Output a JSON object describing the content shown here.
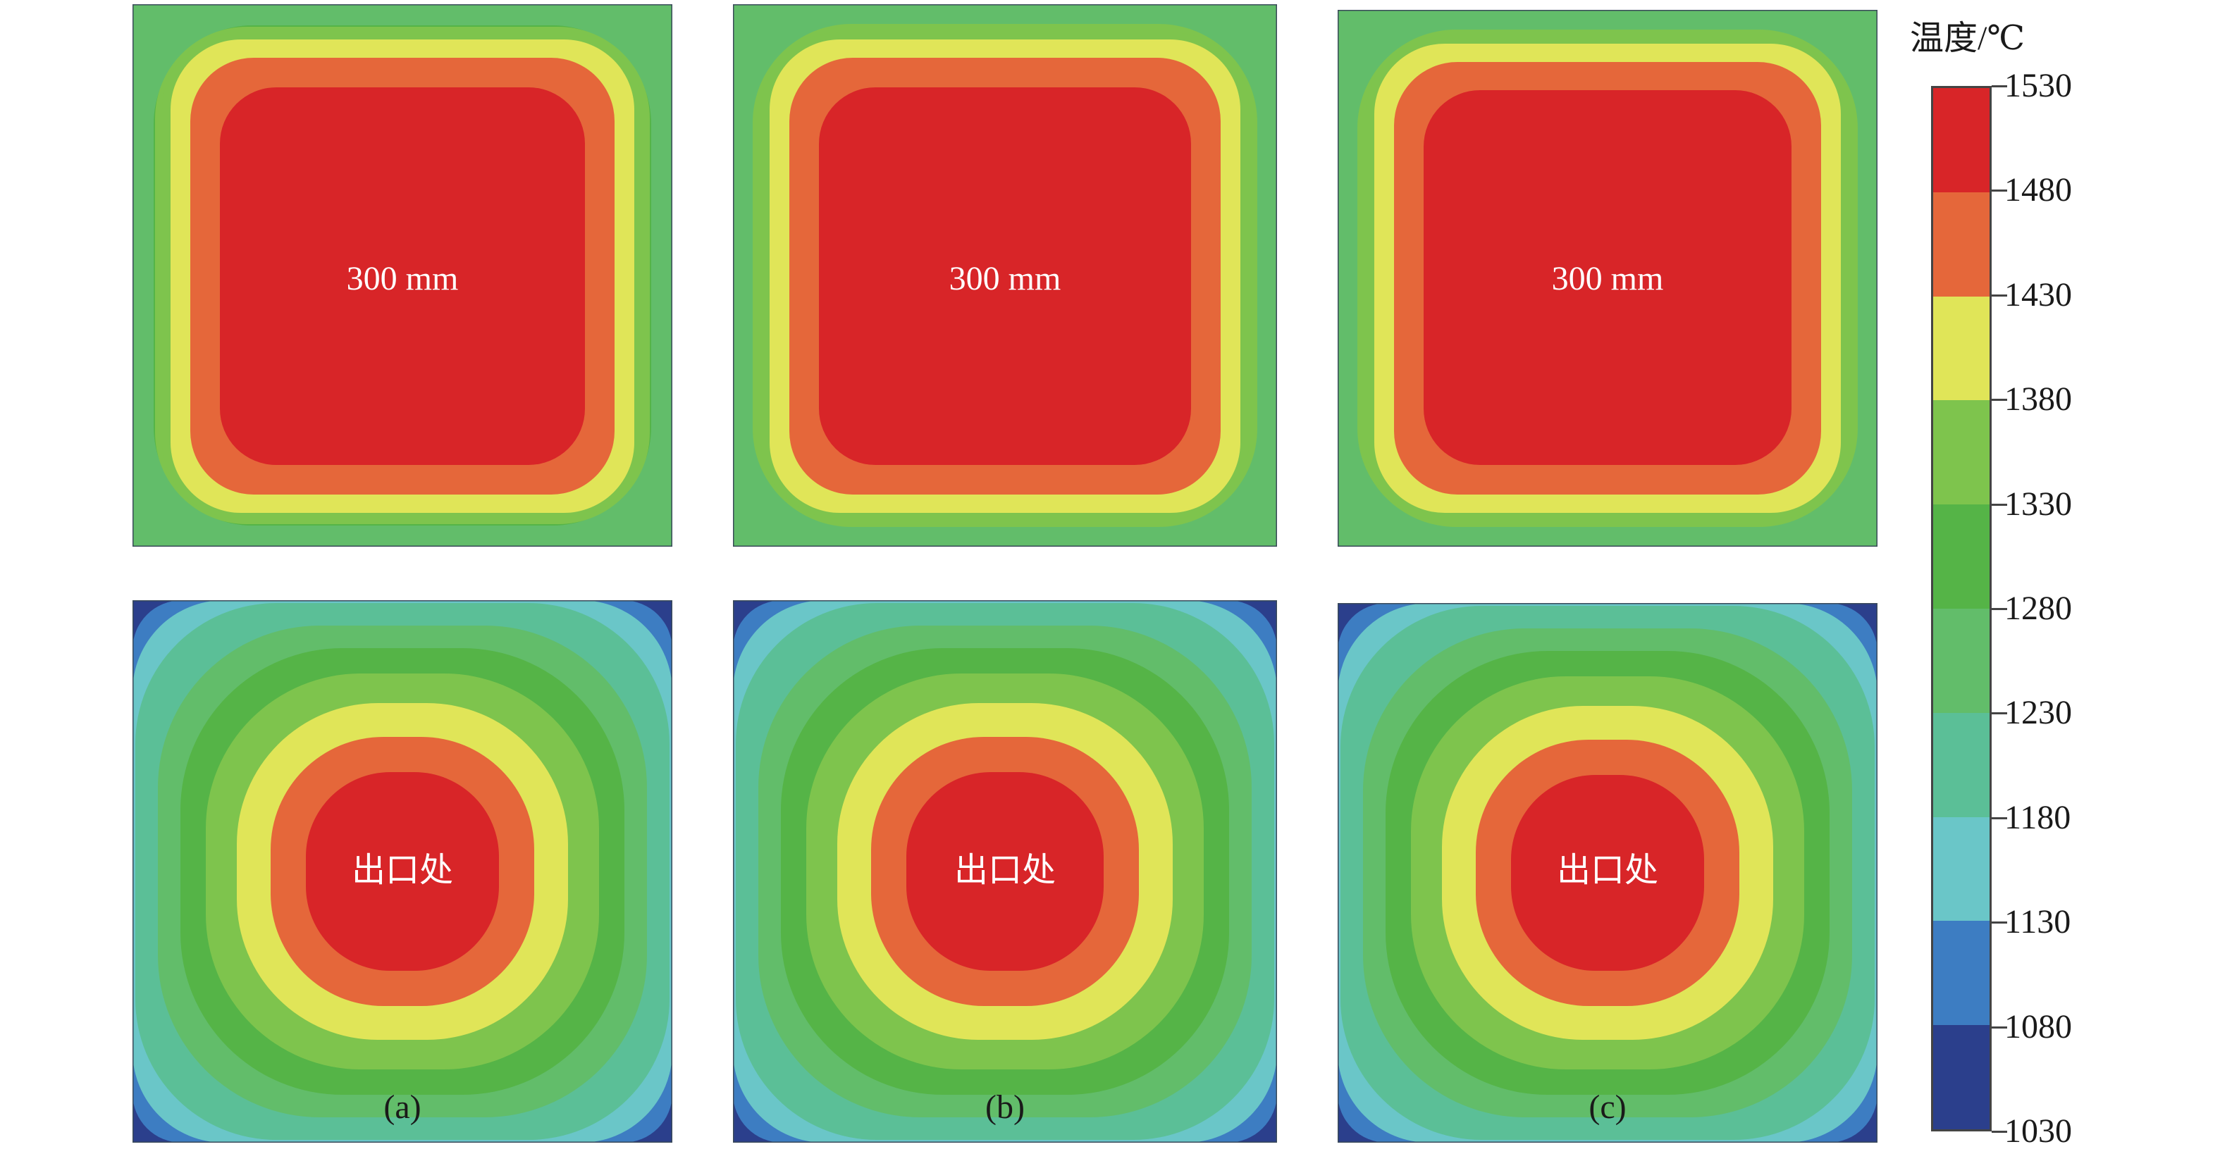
{
  "panels_top": [
    {
      "center_label": "300 mm"
    },
    {
      "center_label": "300 mm"
    },
    {
      "center_label": "300 mm"
    }
  ],
  "panels_bottom": [
    {
      "center_label": "出口处",
      "caption": "(a)"
    },
    {
      "center_label": "出口处",
      "caption": "(b)"
    },
    {
      "center_label": "出口处",
      "caption": "(c)"
    }
  ],
  "colorbar": {
    "title": "温度/℃",
    "ticks": [
      "1530",
      "1480",
      "1430",
      "1380",
      "1330",
      "1280",
      "1230",
      "1180",
      "1130",
      "1080",
      "1030"
    ],
    "colors_top_to_bottom": [
      "#d82528",
      "#e5673a",
      "#e0e558",
      "#7ec44d",
      "#55b447",
      "#62bd6a",
      "#5bbf97",
      "#6ac6c8",
      "#3d7dc2",
      "#2b3f8c"
    ]
  },
  "contour_colors": {
    "core": "#d82528",
    "orange": "#e5673a",
    "yellow": "#e0e558",
    "green1": "#7ec44d",
    "green2": "#55b447",
    "green3": "#62bd6a",
    "teal": "#5bbf97",
    "cyan": "#6ac6c8",
    "blue": "#3d7dc2",
    "navy": "#2b3f8c"
  }
}
